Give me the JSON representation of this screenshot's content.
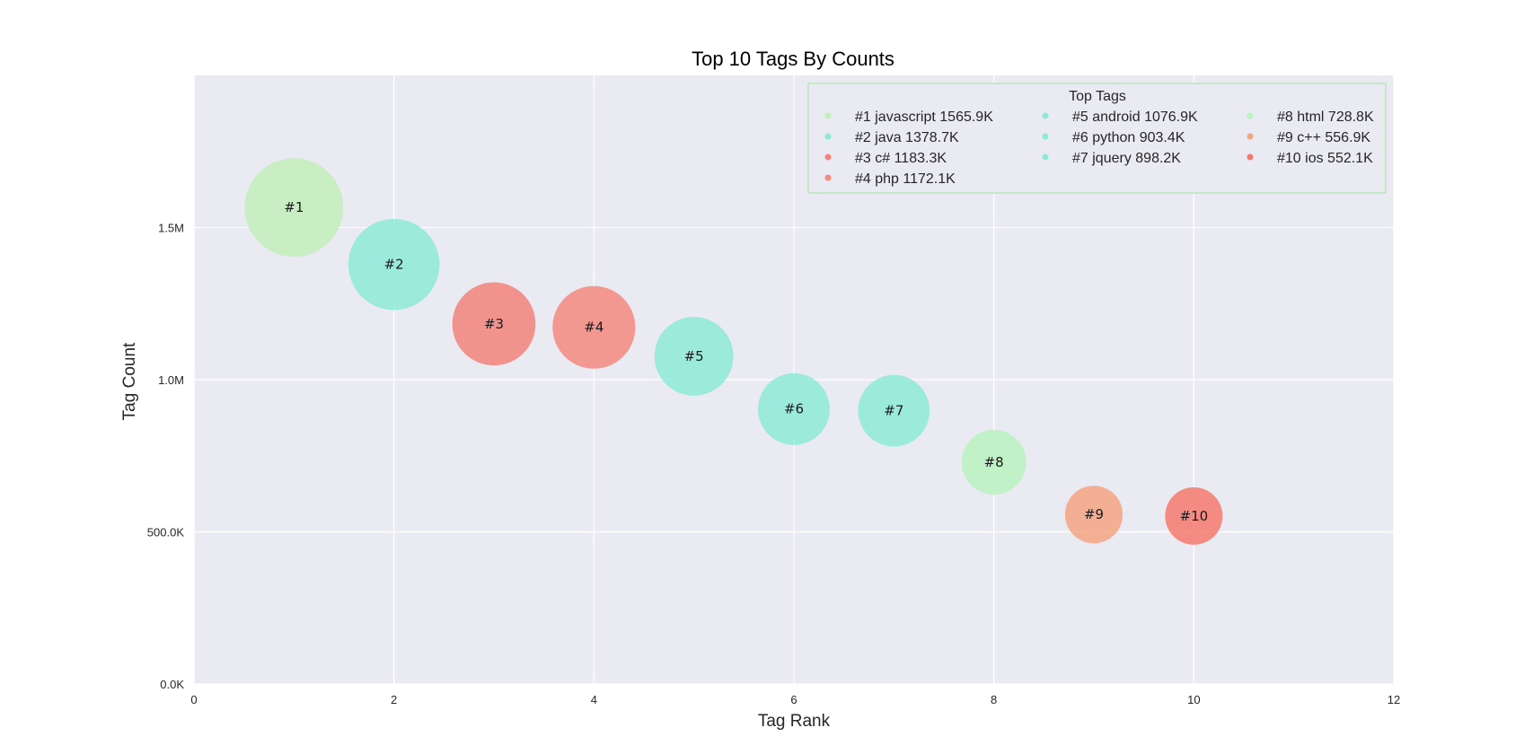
{
  "chart_data": {
    "type": "scatter",
    "title": "Top 10 Tags By Counts",
    "xlabel": "Tag Rank",
    "ylabel": "Tag Count",
    "xlim": [
      0,
      12
    ],
    "ylim": [
      0,
      2000000
    ],
    "xticks": [
      0,
      2,
      4,
      6,
      8,
      10,
      12
    ],
    "xtick_labels": [
      "0",
      "2",
      "4",
      "6",
      "8",
      "10",
      "12"
    ],
    "yticks": [
      0,
      500000,
      1000000,
      1500000
    ],
    "ytick_labels": [
      "0.0K",
      "500.0K",
      "1.0M",
      "1.5M"
    ],
    "grid": true,
    "background": "#EAEAF2",
    "legend": {
      "title": "Top Tags",
      "placement": "top-right",
      "columns": 3,
      "border_color": "#B9E4BD"
    },
    "points": [
      {
        "rank": 1,
        "label": "#1",
        "legend": "#1 javascript 1565.9K",
        "x": 1,
        "y": 1565900,
        "color": "#C4EEBB"
      },
      {
        "rank": 2,
        "label": "#2",
        "legend": "#2 java 1378.7K",
        "x": 2,
        "y": 1378700,
        "color": "#8EEAD7"
      },
      {
        "rank": 3,
        "label": "#3",
        "legend": "#3 c# 1183.3K",
        "x": 3,
        "y": 1183300,
        "color": "#F2827A"
      },
      {
        "rank": 4,
        "label": "#4",
        "legend": "#4 php 1172.1K",
        "x": 4,
        "y": 1172100,
        "color": "#F58A80"
      },
      {
        "rank": 5,
        "label": "#5",
        "legend": "#5 android 1076.9K",
        "x": 5,
        "y": 1076900,
        "color": "#8EEAD7"
      },
      {
        "rank": 6,
        "label": "#6",
        "legend": "#6 python 903.4K",
        "x": 6,
        "y": 903400,
        "color": "#8EEAD7"
      },
      {
        "rank": 7,
        "label": "#7",
        "legend": "#7 jquery 898.2K",
        "x": 7,
        "y": 898200,
        "color": "#8EEAD7"
      },
      {
        "rank": 8,
        "label": "#8",
        "legend": "#8 html 728.8K",
        "x": 8,
        "y": 728800,
        "color": "#B8F2C0"
      },
      {
        "rank": 9,
        "label": "#9",
        "legend": "#9 c++ 556.9K",
        "x": 9,
        "y": 556900,
        "color": "#F5A482"
      },
      {
        "rank": 10,
        "label": "#10",
        "legend": "#10 ios 552.1K",
        "x": 10,
        "y": 552100,
        "color": "#F47A6E"
      }
    ]
  }
}
